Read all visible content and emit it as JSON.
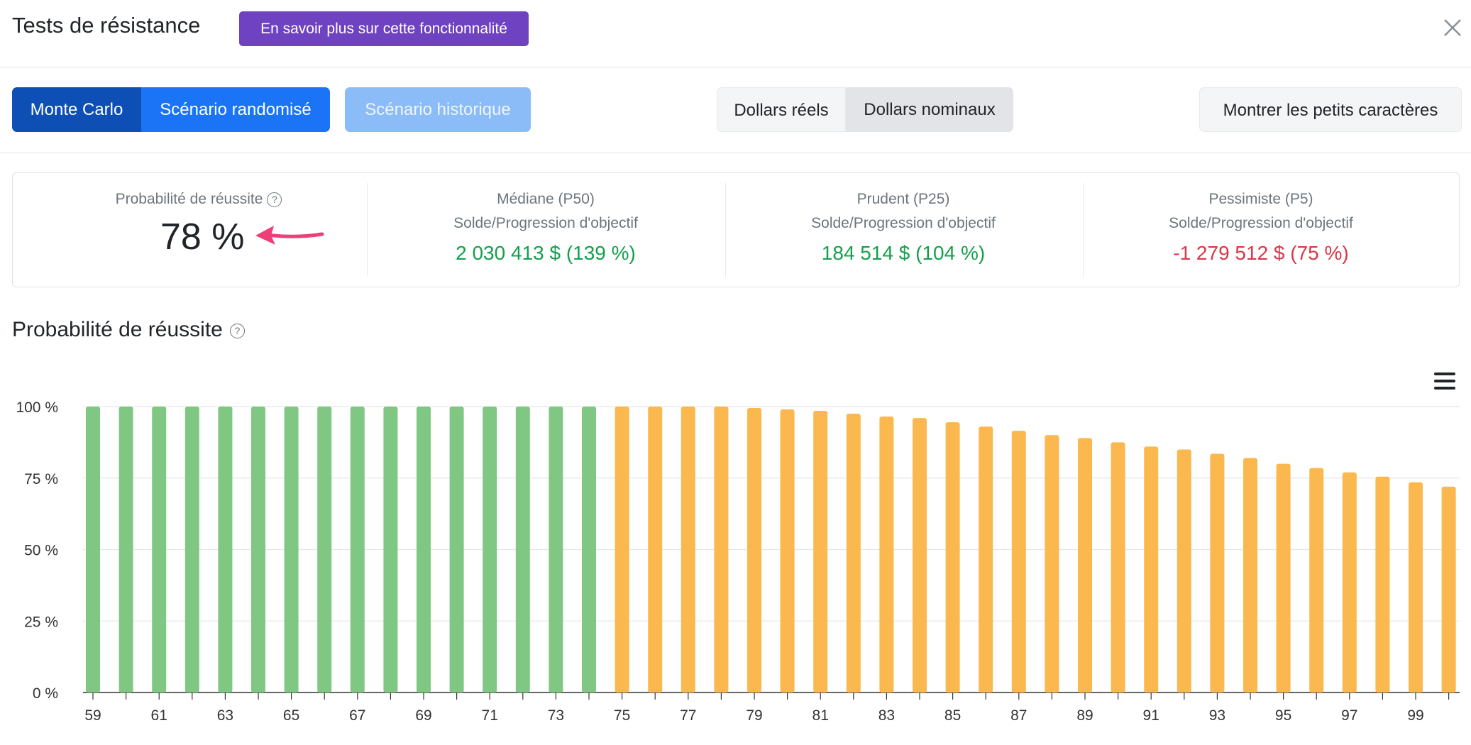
{
  "header": {
    "title": "Tests de résistance",
    "learn_more": "En savoir plus sur cette fonctionnalité"
  },
  "toolbar": {
    "monte_carlo": "Monte Carlo",
    "randomized": "Scénario randomisé",
    "historical": "Scénario historique",
    "real_dollars": "Dollars réels",
    "nominal_dollars": "Dollars nominaux",
    "fine_print": "Montrer les petits caractères"
  },
  "stats": {
    "probability_label": "Probabilité de réussite",
    "probability_value": "78 %",
    "median_label": "Médiane (P50)",
    "median_sub": "Solde/Progression d'objectif",
    "median_value": "2 030 413 $ (139 %)",
    "prudent_label": "Prudent (P25)",
    "prudent_sub": "Solde/Progression d'objectif",
    "prudent_value": "184 514 $ (104 %)",
    "pessimist_label": "Pessimiste (P5)",
    "pessimist_sub": "Solde/Progression d'objectif",
    "pessimist_value": "-1 279 512 $ (75 %)"
  },
  "section": {
    "chart_title": "Probabilité de réussite"
  },
  "colors": {
    "green_bar": "#81c784",
    "orange_bar": "#fbb84f",
    "positive": "#14a04b",
    "negative": "#dc3545",
    "purple": "#6f42c1",
    "primary": "#1a74f5"
  },
  "icons": [
    "close-icon",
    "help-icon",
    "menu-icon",
    "arrow-icon"
  ],
  "chart_data": {
    "type": "bar",
    "categories": [
      59,
      60,
      61,
      62,
      63,
      64,
      65,
      66,
      67,
      68,
      69,
      70,
      71,
      72,
      73,
      74,
      75,
      76,
      77,
      78,
      79,
      80,
      81,
      82,
      83,
      84,
      85,
      86,
      87,
      88,
      89,
      90,
      91,
      92,
      93,
      94,
      95,
      96,
      97,
      98,
      99,
      100
    ],
    "values": [
      100,
      100,
      100,
      100,
      100,
      100,
      100,
      100,
      100,
      100,
      100,
      100,
      100,
      100,
      100,
      100,
      100,
      100,
      100,
      100,
      99.5,
      99,
      98.5,
      97.5,
      96.5,
      96,
      94.5,
      93,
      91.5,
      90,
      89,
      87.5,
      86,
      85,
      83.5,
      82,
      80,
      78.5,
      77,
      75.5,
      73.5,
      72
    ],
    "bar_colors": [
      "green",
      "green",
      "green",
      "green",
      "green",
      "green",
      "green",
      "green",
      "green",
      "green",
      "green",
      "green",
      "green",
      "green",
      "green",
      "green",
      "orange",
      "orange",
      "orange",
      "orange",
      "orange",
      "orange",
      "orange",
      "orange",
      "orange",
      "orange",
      "orange",
      "orange",
      "orange",
      "orange",
      "orange",
      "orange",
      "orange",
      "orange",
      "orange",
      "orange",
      "orange",
      "orange",
      "orange",
      "orange",
      "orange",
      "orange"
    ],
    "x_tick_labels": [
      "59",
      "61",
      "63",
      "65",
      "67",
      "69",
      "71",
      "73",
      "75",
      "77",
      "79",
      "81",
      "83",
      "85",
      "87",
      "89",
      "91",
      "93",
      "95",
      "97",
      "99"
    ],
    "y_tick_labels": [
      "100 %",
      "75 %",
      "50 %",
      "25 %",
      "0 %"
    ],
    "y_ticks": [
      100,
      75,
      50,
      25,
      0
    ],
    "ylim": [
      0,
      100
    ],
    "grid": true,
    "legend": "none"
  }
}
